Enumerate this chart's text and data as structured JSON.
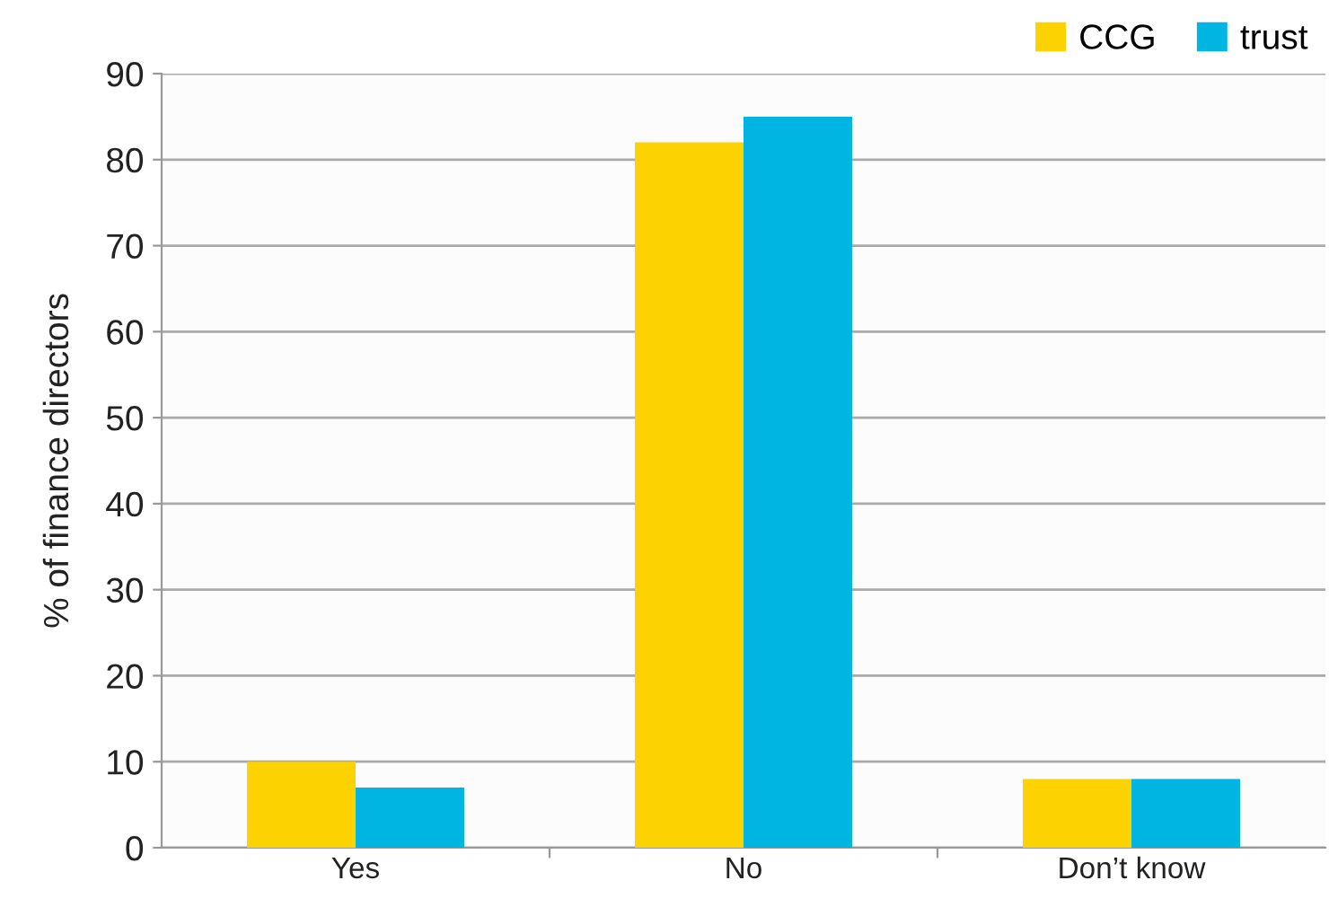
{
  "chart_data": {
    "type": "bar",
    "ylabel": "% of finance directors",
    "categories": [
      "Yes",
      "No",
      "Don’t know"
    ],
    "series": [
      {
        "name": "CCG",
        "color": "#fcd200",
        "values": [
          10,
          82,
          8
        ]
      },
      {
        "name": "trust",
        "color": "#00b5e2",
        "values": [
          7,
          85,
          8
        ]
      }
    ],
    "ylim": [
      0,
      90
    ],
    "yticks": [
      0,
      10,
      20,
      30,
      40,
      50,
      60,
      70,
      80,
      90
    ],
    "grid": "y",
    "legend": "top right"
  }
}
